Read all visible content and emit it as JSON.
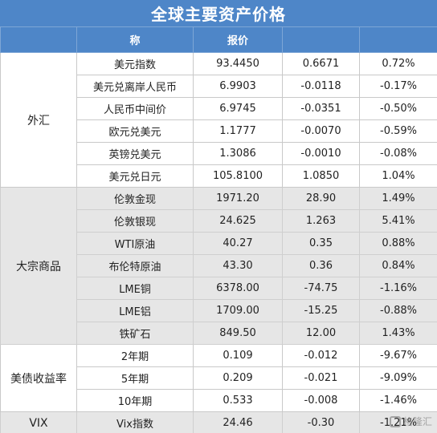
{
  "title": "全球主要资产价格",
  "headers": [
    "",
    "称",
    "报价",
    "",
    ""
  ],
  "groups": [
    {
      "category": "外汇",
      "rows": [
        [
          "美元指数",
          "93.4450",
          "0.6671",
          "0.72%"
        ],
        [
          "美元兑离岸人民币",
          "6.9903",
          "-0.0118",
          "-0.17%"
        ],
        [
          "人民币中间价",
          "6.9745",
          "-0.0351",
          "-0.50%"
        ],
        [
          "欧元兑美元",
          "1.1777",
          "-0.0070",
          "-0.59%"
        ],
        [
          "英镑兑美元",
          "1.3086",
          "-0.0010",
          "-0.08%"
        ],
        [
          "美元兑日元",
          "105.8100",
          "1.0850",
          "1.04%"
        ]
      ]
    },
    {
      "category": "大宗商品",
      "rows": [
        [
          "伦敦金现",
          "1971.20",
          "28.90",
          "1.49%"
        ],
        [
          "伦敦银现",
          "24.625",
          "1.263",
          "5.41%"
        ],
        [
          "WTI原油",
          "40.27",
          "0.35",
          "0.88%"
        ],
        [
          "布伦特原油",
          "43.30",
          "0.36",
          "0.84%"
        ],
        [
          "LME铜",
          "6378.00",
          "-74.75",
          "-1.16%"
        ],
        [
          "LME铝",
          "1709.00",
          "-15.25",
          "-0.88%"
        ],
        [
          "铁矿石",
          "849.50",
          "12.00",
          "1.43%"
        ]
      ]
    },
    {
      "category": "美债收益率",
      "rows": [
        [
          "2年期",
          "0.109",
          "-0.012",
          "-9.67%"
        ],
        [
          "5年期",
          "0.209",
          "-0.021",
          "-9.09%"
        ],
        [
          "10年期",
          "0.533",
          "-0.008",
          "-1.46%"
        ]
      ]
    },
    {
      "category": "VIX",
      "rows": [
        [
          "Vix指数",
          "24.46",
          "-0.30",
          "-1.21%"
        ]
      ]
    }
  ],
  "watermark": "格隆汇"
}
